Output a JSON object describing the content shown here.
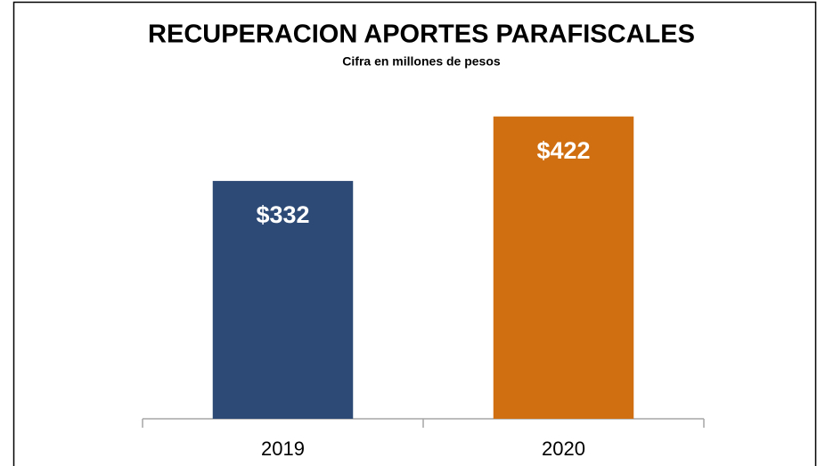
{
  "chart_data": {
    "type": "bar",
    "title": "RECUPERACION APORTES PARAFISCALES",
    "subtitle": "Cifra en millones de pesos",
    "categories": [
      "2019",
      "2020"
    ],
    "values": [
      332,
      422
    ],
    "value_labels": [
      "$332",
      "$422"
    ],
    "colors": [
      "#2d4a76",
      "#d06f12"
    ],
    "ylim": [
      0,
      500
    ]
  }
}
